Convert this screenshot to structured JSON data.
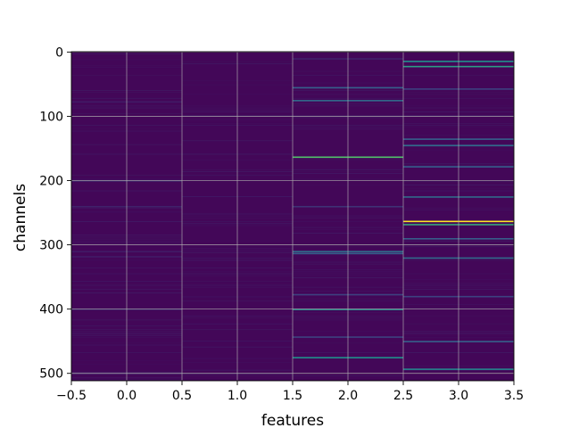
{
  "chart_data": {
    "type": "heatmap",
    "title": "",
    "xlabel": "features",
    "ylabel": "channels",
    "xlim": [
      -0.5,
      3.5
    ],
    "ylim": [
      511.5,
      -0.5
    ],
    "rows": 512,
    "columns": [
      0,
      1,
      2,
      3
    ],
    "xticks": [
      "-0.5",
      "0.0",
      "0.5",
      "1.0",
      "1.5",
      "2.0",
      "2.5",
      "3.0",
      "3.5"
    ],
    "yticks": [
      "0",
      "100",
      "200",
      "300",
      "400",
      "500"
    ],
    "grid": true,
    "colormap": "viridis",
    "background_value": 0.02,
    "bright_rows": [
      {
        "column": 0,
        "row": 77,
        "value": 0.08
      },
      {
        "column": 0,
        "row": 200,
        "value": 0.12
      },
      {
        "column": 0,
        "row": 240,
        "value": 0.1
      },
      {
        "column": 0,
        "row": 310,
        "value": 0.08
      },
      {
        "column": 0,
        "row": 318,
        "value": 0.08
      },
      {
        "column": 0,
        "row": 400,
        "value": 0.1
      },
      {
        "column": 0,
        "row": 500,
        "value": 0.08
      },
      {
        "column": 1,
        "row": 500,
        "value": 0.06
      },
      {
        "column": 2,
        "row": 10,
        "value": 0.1
      },
      {
        "column": 2,
        "row": 55,
        "value": 0.3
      },
      {
        "column": 2,
        "row": 75,
        "value": 0.35
      },
      {
        "column": 2,
        "row": 163,
        "value": 0.7
      },
      {
        "column": 2,
        "row": 240,
        "value": 0.15
      },
      {
        "column": 2,
        "row": 310,
        "value": 0.35
      },
      {
        "column": 2,
        "row": 313,
        "value": 0.3
      },
      {
        "column": 2,
        "row": 377,
        "value": 0.2
      },
      {
        "column": 2,
        "row": 400,
        "value": 0.5
      },
      {
        "column": 2,
        "row": 443,
        "value": 0.2
      },
      {
        "column": 2,
        "row": 475,
        "value": 0.5
      },
      {
        "column": 3,
        "row": 14,
        "value": 0.5
      },
      {
        "column": 3,
        "row": 22,
        "value": 0.55
      },
      {
        "column": 3,
        "row": 57,
        "value": 0.2
      },
      {
        "column": 3,
        "row": 135,
        "value": 0.3
      },
      {
        "column": 3,
        "row": 145,
        "value": 0.35
      },
      {
        "column": 3,
        "row": 178,
        "value": 0.3
      },
      {
        "column": 3,
        "row": 225,
        "value": 0.35
      },
      {
        "column": 3,
        "row": 263,
        "value": 1.0
      },
      {
        "column": 3,
        "row": 268,
        "value": 0.6
      },
      {
        "column": 3,
        "row": 290,
        "value": 0.3
      },
      {
        "column": 3,
        "row": 320,
        "value": 0.35
      },
      {
        "column": 3,
        "row": 380,
        "value": 0.2
      },
      {
        "column": 3,
        "row": 450,
        "value": 0.3
      },
      {
        "column": 3,
        "row": 493,
        "value": 0.45
      }
    ]
  }
}
